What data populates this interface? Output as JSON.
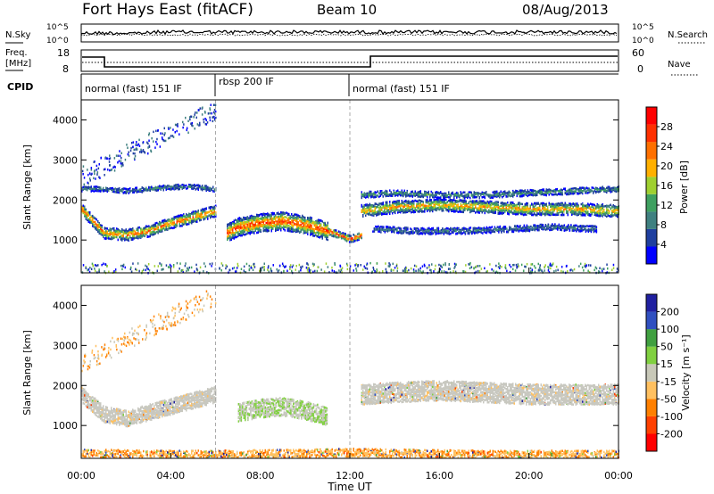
{
  "header": {
    "radar": "Fort Hays East (fitACF)",
    "beam": "Beam 10",
    "date": "08/Aug/2013"
  },
  "noise_panel": {
    "left_label": "N.Sky",
    "right_label": "N.Search",
    "left_ticks": [
      "10^5",
      "10^0"
    ],
    "right_ticks": [
      "10^5",
      "10^0"
    ]
  },
  "freq_panel": {
    "left_label_1": "Freq.",
    "left_label_2": "[MHz]",
    "right_label": "Nave",
    "left_ticks": [
      "18",
      "8"
    ],
    "right_ticks": [
      "60",
      "0"
    ]
  },
  "cpid": {
    "label": "CPID",
    "segments": [
      {
        "name": "normal (fast) 151 IF",
        "start_hour": 0,
        "end_hour": 6
      },
      {
        "name": "rbsp 200 IF",
        "start_hour": 6,
        "end_hour": 12
      },
      {
        "name": "normal (fast) 151 IF",
        "start_hour": 12,
        "end_hour": 24
      }
    ]
  },
  "colors": {
    "power_scale": [
      "#0000ff",
      "#1f3f9f",
      "#3f8080",
      "#3fa060",
      "#9fd030",
      "#ffb000",
      "#ff7000",
      "#ff3000",
      "#ff0000"
    ],
    "velocity_scale": [
      "#2020a0",
      "#3050c0",
      "#40a040",
      "#80d040",
      "#c8c8b8",
      "#ffc060",
      "#ff8000",
      "#ff4000",
      "#ff0000"
    ],
    "ground_scatter_gray": "#c8c8c0"
  },
  "chart_data": [
    {
      "type": "heatmap",
      "name": "power",
      "ylabel": "Slant Range [km]",
      "ylim": [
        180,
        4500
      ],
      "yticks": [
        "4000",
        "3000",
        "2000",
        "1000"
      ],
      "colorbar_label": "Power [dB]",
      "colorbar_ticks": [
        "28",
        "24",
        "20",
        "16",
        "12",
        "8",
        "4"
      ],
      "bands": [
        {
          "x": [
            0,
            1,
            2,
            3,
            4,
            5,
            6
          ],
          "center_km": [
            1800,
            1200,
            1150,
            1250,
            1450,
            1600,
            1750
          ],
          "width_km": 280,
          "intensity": 0.8
        },
        {
          "x": [
            6.5,
            7,
            8,
            9,
            10,
            11
          ],
          "center_km": [
            1200,
            1350,
            1450,
            1500,
            1400,
            1250
          ],
          "width_km": 450,
          "intensity": 0.9
        },
        {
          "x": [
            11,
            11.5,
            12,
            12.5
          ],
          "center_km": [
            1250,
            1150,
            1050,
            1150
          ],
          "width_km": 180,
          "intensity": 1.0
        },
        {
          "x": [
            12.5,
            14,
            16,
            18,
            20,
            22,
            24
          ],
          "center_km": [
            1750,
            1850,
            1900,
            1850,
            1800,
            1800,
            1750
          ],
          "width_km": 300,
          "intensity": 0.7
        },
        {
          "x": [
            12.5,
            14,
            16,
            18,
            20,
            22,
            24
          ],
          "center_km": [
            2150,
            2200,
            2150,
            2150,
            2200,
            2250,
            2300
          ],
          "width_km": 150,
          "intensity": 0.35
        },
        {
          "x": [
            0,
            1,
            2,
            3,
            4,
            5,
            6
          ],
          "center_km": [
            2300,
            2300,
            2250,
            2300,
            2350,
            2350,
            2300
          ],
          "width_km": 120,
          "intensity": 0.3
        },
        {
          "x": [
            13,
            15,
            17,
            19,
            21,
            23
          ],
          "center_km": [
            1300,
            1250,
            1250,
            1300,
            1350,
            1300
          ],
          "width_km": 150,
          "intensity": 0.25
        }
      ]
    },
    {
      "type": "heatmap",
      "name": "velocity",
      "xlabel": "Time UT",
      "ylabel": "Slant Range [km]",
      "ylim": [
        180,
        4500
      ],
      "yticks": [
        "4000",
        "3000",
        "2000",
        "1000"
      ],
      "xticks": [
        "00:00",
        "04:00",
        "08:00",
        "12:00",
        "16:00",
        "20:00",
        "00:00"
      ],
      "colorbar_label": "Velocity [m s⁻¹]",
      "colorbar_ticks": [
        "200",
        "100",
        "50",
        "15",
        "-15",
        "-50",
        "-100",
        "-200"
      ],
      "bands": [
        {
          "x": [
            0,
            1,
            2,
            3,
            4,
            5,
            6
          ],
          "center_km": [
            1800,
            1300,
            1200,
            1350,
            1500,
            1650,
            1800
          ],
          "width_km": 400,
          "kind": "ground"
        },
        {
          "x": [
            7,
            8,
            9,
            10,
            11
          ],
          "center_km": [
            1350,
            1450,
            1500,
            1400,
            1250
          ],
          "width_km": 450,
          "kind": "green"
        },
        {
          "x": [
            12.5,
            14,
            16,
            18,
            20,
            22,
            24
          ],
          "center_km": [
            1800,
            1850,
            1900,
            1850,
            1800,
            1800,
            1800
          ],
          "width_km": 500,
          "kind": "ground"
        },
        {
          "x": [
            0,
            3,
            6,
            9,
            12,
            15,
            18,
            21,
            24
          ],
          "center_km": [
            330,
            300,
            300,
            320,
            350,
            320,
            300,
            300,
            300
          ],
          "width_km": 200,
          "kind": "orange"
        }
      ]
    }
  ]
}
